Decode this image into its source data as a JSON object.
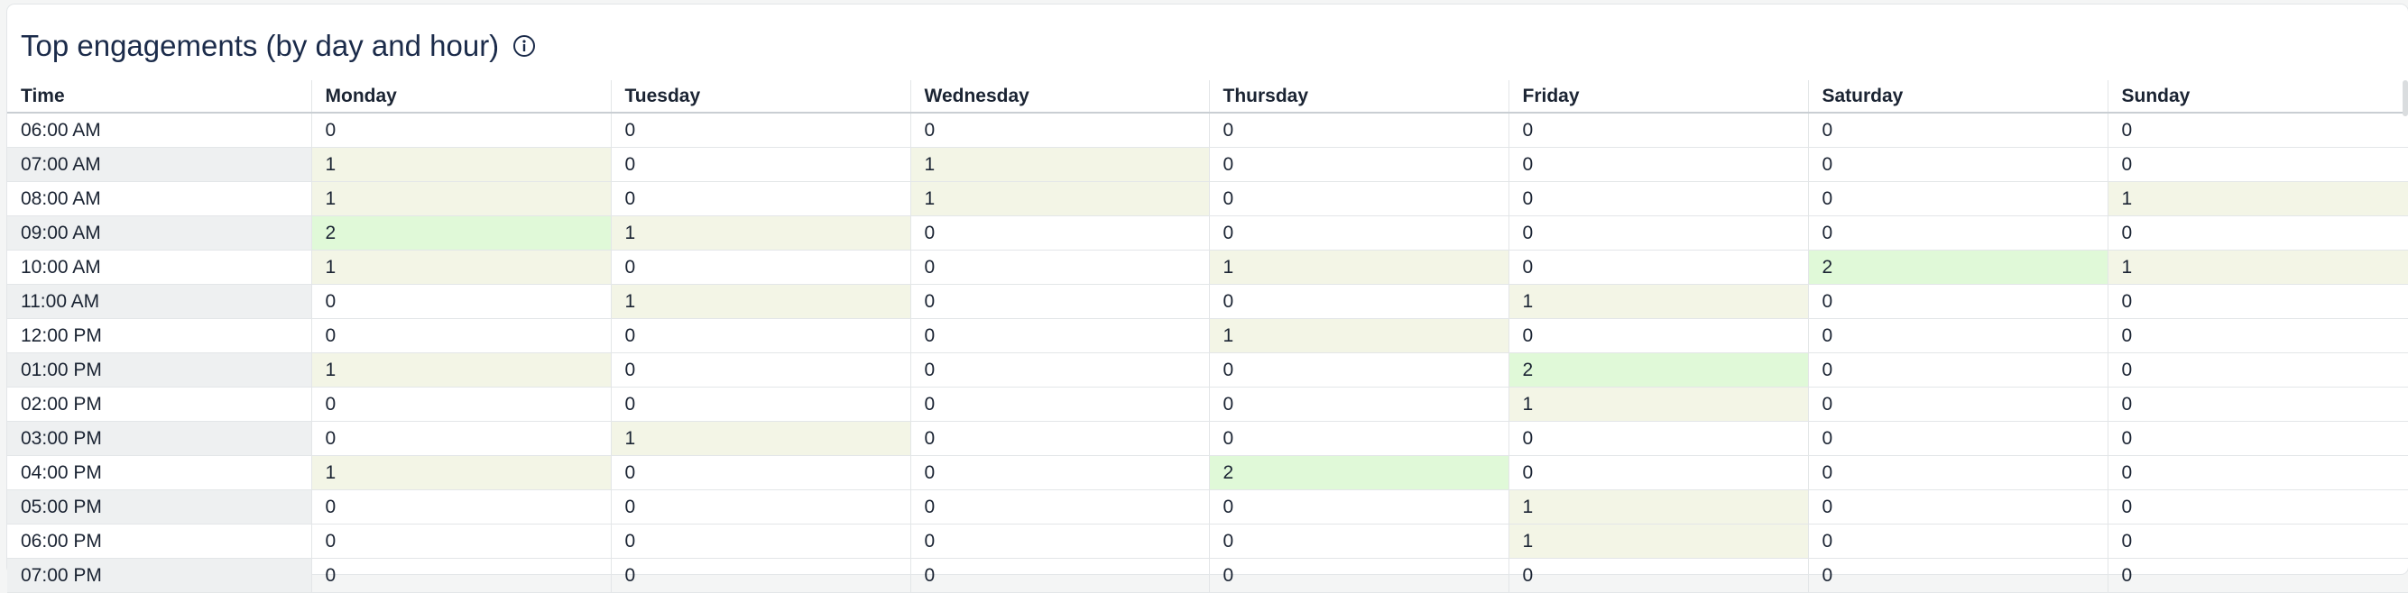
{
  "widget": {
    "title": "Top engagements (by day and hour)",
    "info_icon": "info-circle-icon"
  },
  "table": {
    "headers": [
      "Time",
      "Monday",
      "Tuesday",
      "Wednesday",
      "Thursday",
      "Friday",
      "Saturday",
      "Sunday"
    ],
    "rows": [
      {
        "time": "06:00 AM",
        "values": [
          0,
          0,
          0,
          0,
          0,
          0,
          0
        ]
      },
      {
        "time": "07:00 AM",
        "values": [
          1,
          0,
          1,
          0,
          0,
          0,
          0
        ]
      },
      {
        "time": "08:00 AM",
        "values": [
          1,
          0,
          1,
          0,
          0,
          0,
          1
        ]
      },
      {
        "time": "09:00 AM",
        "values": [
          2,
          1,
          0,
          0,
          0,
          0,
          0
        ]
      },
      {
        "time": "10:00 AM",
        "values": [
          1,
          0,
          0,
          1,
          0,
          2,
          1
        ]
      },
      {
        "time": "11:00 AM",
        "values": [
          0,
          1,
          0,
          0,
          1,
          0,
          0
        ]
      },
      {
        "time": "12:00 PM",
        "values": [
          0,
          0,
          0,
          1,
          0,
          0,
          0
        ]
      },
      {
        "time": "01:00 PM",
        "values": [
          1,
          0,
          0,
          0,
          2,
          0,
          0
        ]
      },
      {
        "time": "02:00 PM",
        "values": [
          0,
          0,
          0,
          0,
          1,
          0,
          0
        ]
      },
      {
        "time": "03:00 PM",
        "values": [
          0,
          1,
          0,
          0,
          0,
          0,
          0
        ]
      },
      {
        "time": "04:00 PM",
        "values": [
          1,
          0,
          0,
          2,
          0,
          0,
          0
        ]
      },
      {
        "time": "05:00 PM",
        "values": [
          0,
          0,
          0,
          0,
          1,
          0,
          0
        ]
      },
      {
        "time": "06:00 PM",
        "values": [
          0,
          0,
          0,
          0,
          1,
          0,
          0
        ]
      },
      {
        "time": "07:00 PM",
        "values": [
          0,
          0,
          0,
          0,
          0,
          0,
          0
        ]
      }
    ]
  },
  "colors": {
    "level_1": "#f3f5e6",
    "level_2": "#e0f9d8",
    "time_alt": "#eef0f1"
  }
}
